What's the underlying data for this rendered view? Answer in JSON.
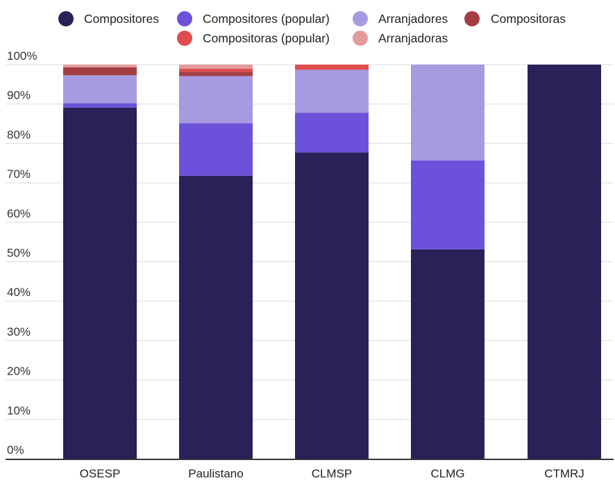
{
  "chart_data": {
    "type": "bar",
    "stacked": true,
    "categories": [
      "OSESP",
      "Paulistano",
      "CLMSP",
      "CLMG",
      "CTMRJ"
    ],
    "ylim": [
      0,
      100
    ],
    "y_ticks": [
      "0%",
      "10%",
      "20%",
      "30%",
      "40%",
      "50%",
      "60%",
      "70%",
      "80%",
      "90%",
      "100%"
    ],
    "grid": true,
    "legend_position": "top",
    "series": [
      {
        "name": "Compositores",
        "color": "#2a2158",
        "values": [
          89.1,
          71.8,
          77.7,
          53.1,
          100
        ]
      },
      {
        "name": "Compositores (popular)",
        "color": "#6c52db",
        "values": [
          1.1,
          13.3,
          10.1,
          22.6,
          0
        ]
      },
      {
        "name": "Arranjadores",
        "color": "#a79ae1",
        "values": [
          7.1,
          12.0,
          10.9,
          24.3,
          0
        ]
      },
      {
        "name": "Compositoras",
        "color": "#a43e45",
        "values": [
          2.0,
          1.1,
          0,
          0,
          0
        ]
      },
      {
        "name": "Compositoras (popular)",
        "color": "#e04d4d",
        "values": [
          0,
          0.8,
          1.3,
          0,
          0
        ]
      },
      {
        "name": "Arranjadoras",
        "color": "#e39c9c",
        "values": [
          0.7,
          1.0,
          0,
          0,
          0
        ]
      }
    ]
  }
}
